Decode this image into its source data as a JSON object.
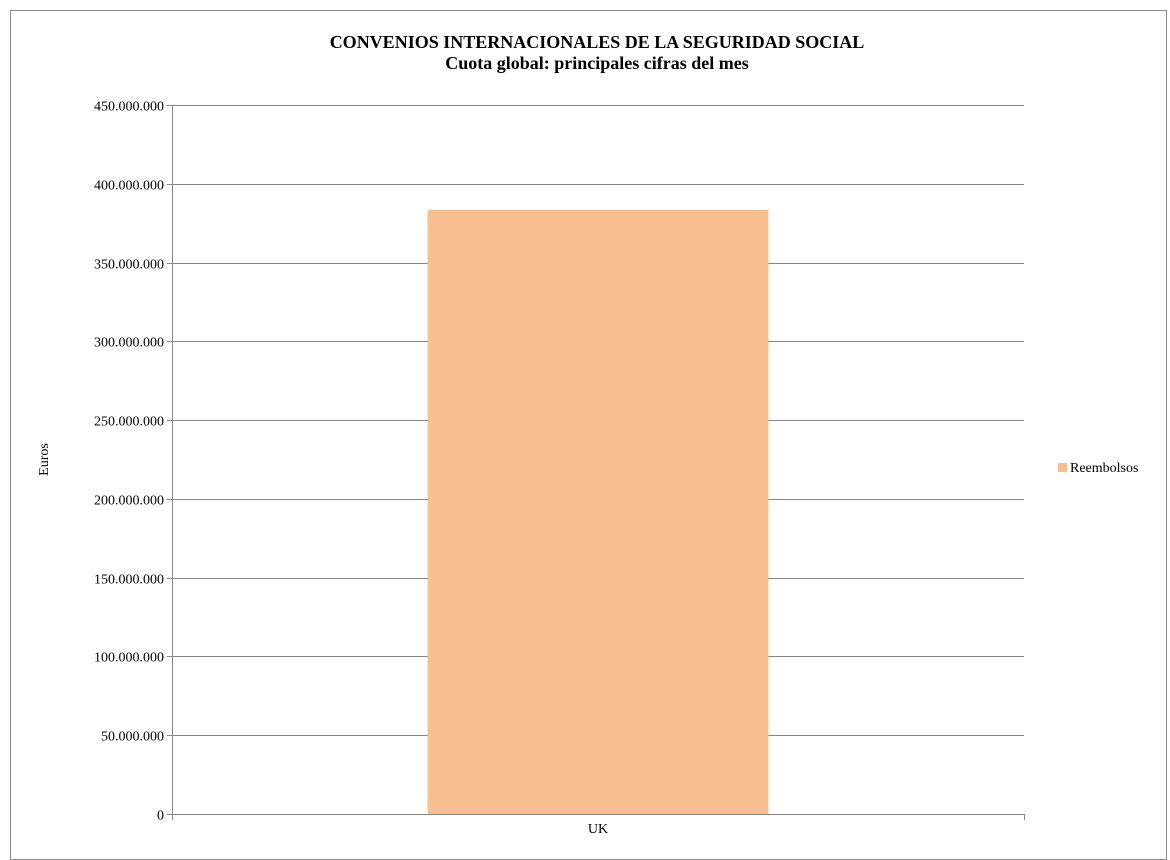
{
  "chart_data": {
    "type": "bar",
    "title": "CONVENIOS INTERNACIONALES DE LA SEGURIDAD SOCIAL",
    "subtitle": "Cuota global: principales cifras del mes",
    "categories": [
      "UK"
    ],
    "series": [
      {
        "name": "Reembolsos",
        "values": [
          383500000
        ],
        "color": "#f9bf8f"
      }
    ],
    "ylabel": "Euros",
    "xlabel": "",
    "ylim": [
      0,
      450000000
    ],
    "ytick_labels": [
      "0",
      "50.000.000",
      "100.000.000",
      "150.000.000",
      "200.000.000",
      "250.000.000",
      "300.000.000",
      "350.000.000",
      "400.000.000",
      "450.000.000"
    ],
    "ytick_values": [
      0,
      50000000,
      100000000,
      150000000,
      200000000,
      250000000,
      300000000,
      350000000,
      400000000,
      450000000
    ],
    "grid": true,
    "legend": "right",
    "gridline_color": "#868686",
    "axis_color": "#868686"
  }
}
